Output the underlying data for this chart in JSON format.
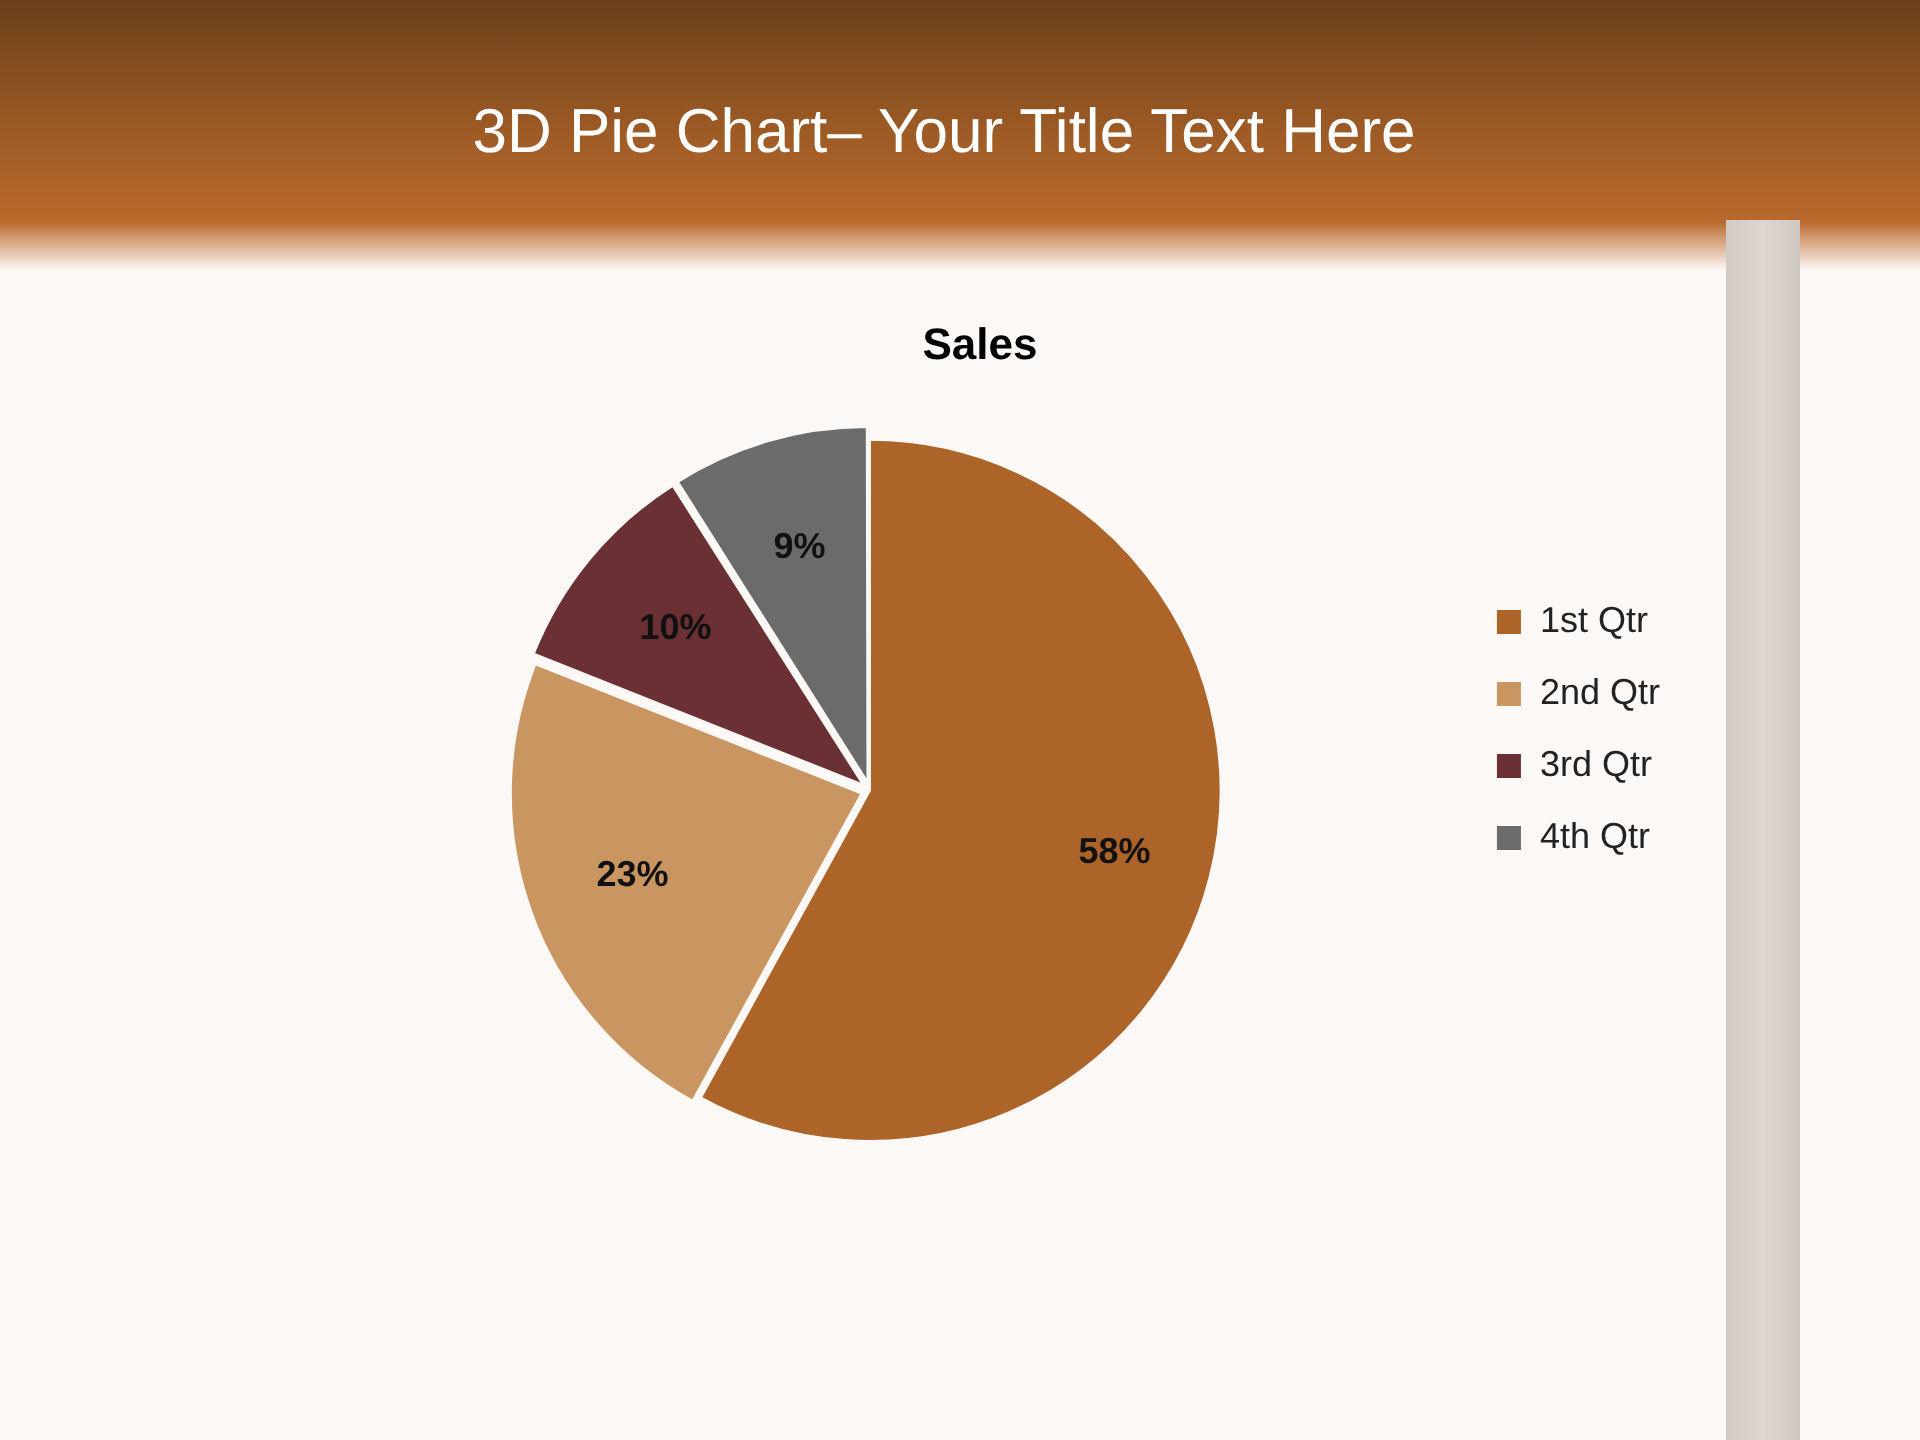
{
  "chart_data": {
    "type": "pie",
    "title": "3D Pie Chart– Your Title Text Here",
    "subtitle": "Sales",
    "categories": [
      "1st Qtr",
      "2nd Qtr",
      "3rd Qtr",
      "4th Qtr"
    ],
    "values": [
      58,
      23,
      10,
      9
    ],
    "colors": [
      "#ad6429",
      "#c99662",
      "#6a3033",
      "#6b6b6b"
    ],
    "value_labels": [
      "58%",
      "23%",
      "10%",
      "9%"
    ],
    "legend": "right"
  }
}
